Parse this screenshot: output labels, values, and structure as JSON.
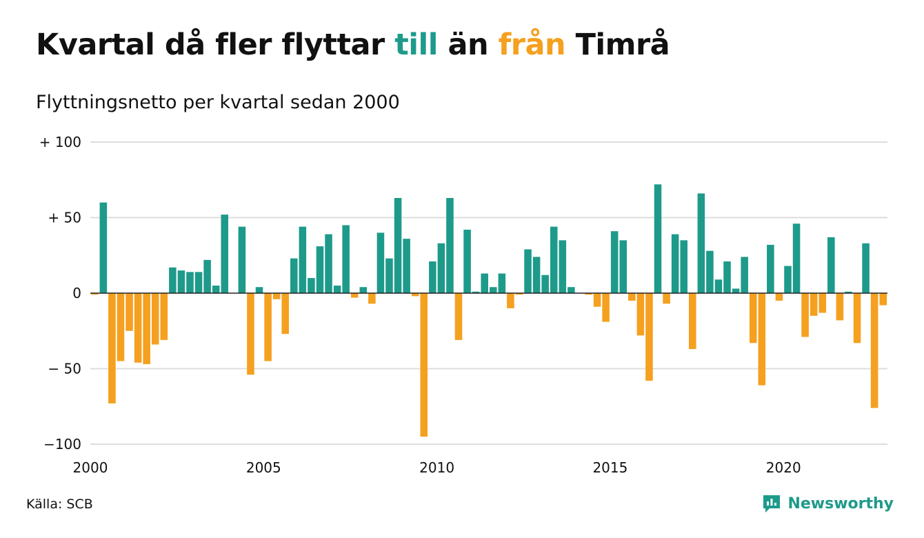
{
  "header": {
    "title_part1": "Kvartal då fler flyttar ",
    "title_till": "till",
    "title_part2": " än ",
    "title_fran": "från",
    "title_part3": " Timrå",
    "subtitle": "Flyttningsnetto per kvartal sedan 2000"
  },
  "footer": {
    "source": "Källa: SCB",
    "brand": "Newsworthy",
    "brand_icon": "bar-chart-speech-icon"
  },
  "colors": {
    "positive": "#1e9a8a",
    "negative": "#f5a01f",
    "grid": "#dddddd",
    "zero_line": "#222222"
  },
  "chart_data": {
    "type": "bar",
    "title": "Kvartal då fler flyttar till än från Timrå",
    "subtitle": "Flyttningsnetto per kvartal sedan 2000",
    "xlabel": "",
    "ylabel": "",
    "ylim": [
      -100,
      100
    ],
    "xlim": [
      "2000 Q1",
      "2023 Q1"
    ],
    "grid": true,
    "y_ticks": [
      {
        "value": 100,
        "label": "+ 100"
      },
      {
        "value": 50,
        "label": "+  50"
      },
      {
        "value": 0,
        "label": "0"
      },
      {
        "value": -50,
        "label": "− 50"
      },
      {
        "value": -100,
        "label": "−100"
      }
    ],
    "x_ticks": [
      {
        "year": 2000,
        "label": "2000"
      },
      {
        "year": 2005,
        "label": "2005"
      },
      {
        "year": 2010,
        "label": "2010"
      },
      {
        "year": 2015,
        "label": "2015"
      },
      {
        "year": 2020,
        "label": "2020"
      }
    ],
    "start_year": 2000,
    "values": [
      -1,
      60,
      -73,
      -45,
      -25,
      -46,
      -47,
      -34,
      -31,
      17,
      15,
      14,
      14,
      22,
      5,
      52,
      0,
      44,
      -54,
      4,
      -45,
      -4,
      -27,
      23,
      44,
      10,
      31,
      39,
      5,
      45,
      -3,
      4,
      -7,
      40,
      23,
      63,
      36,
      -2,
      -95,
      21,
      33,
      63,
      -31,
      42,
      1,
      13,
      4,
      13,
      -10,
      -1,
      29,
      24,
      12,
      44,
      35,
      4,
      0,
      -1,
      -9,
      -19,
      41,
      35,
      -5,
      -28,
      -58,
      72,
      -7,
      39,
      35,
      -37,
      66,
      28,
      9,
      21,
      3,
      24,
      -33,
      -61,
      32,
      -5,
      18,
      46,
      -29,
      -15,
      -13,
      37,
      -18,
      1,
      -33,
      33,
      -76,
      -8
    ]
  }
}
